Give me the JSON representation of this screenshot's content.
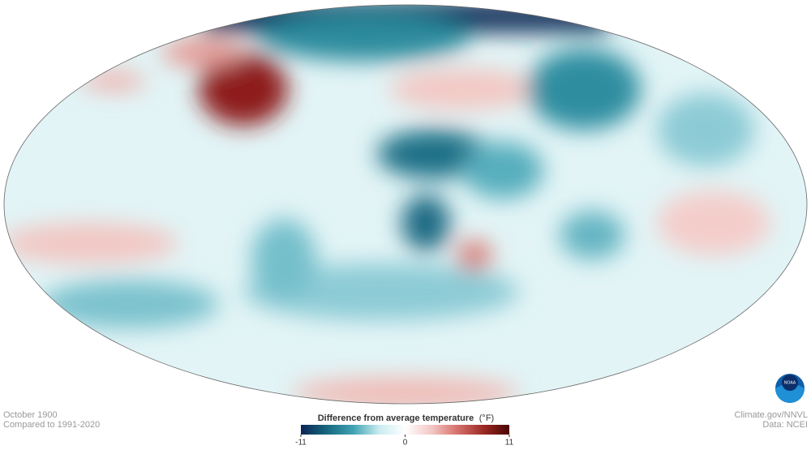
{
  "map": {
    "date": "October 1900",
    "baseline": "Compared to 1991-2020"
  },
  "legend": {
    "title": "Difference from average temperature",
    "unit": "(°F)",
    "range": [
      -11,
      11
    ],
    "ticks": [
      -11,
      0,
      11
    ],
    "colors": [
      "#0b2556",
      "#17687f",
      "#3fa2b3",
      "#c9ecf0",
      "#ffffff",
      "#f3c9c6",
      "#d6716c",
      "#9c2a25",
      "#4a0505"
    ]
  },
  "credits": {
    "source": "Climate.gov/NNVL",
    "data": "Data: NCEI",
    "logo": "NOAA"
  }
}
